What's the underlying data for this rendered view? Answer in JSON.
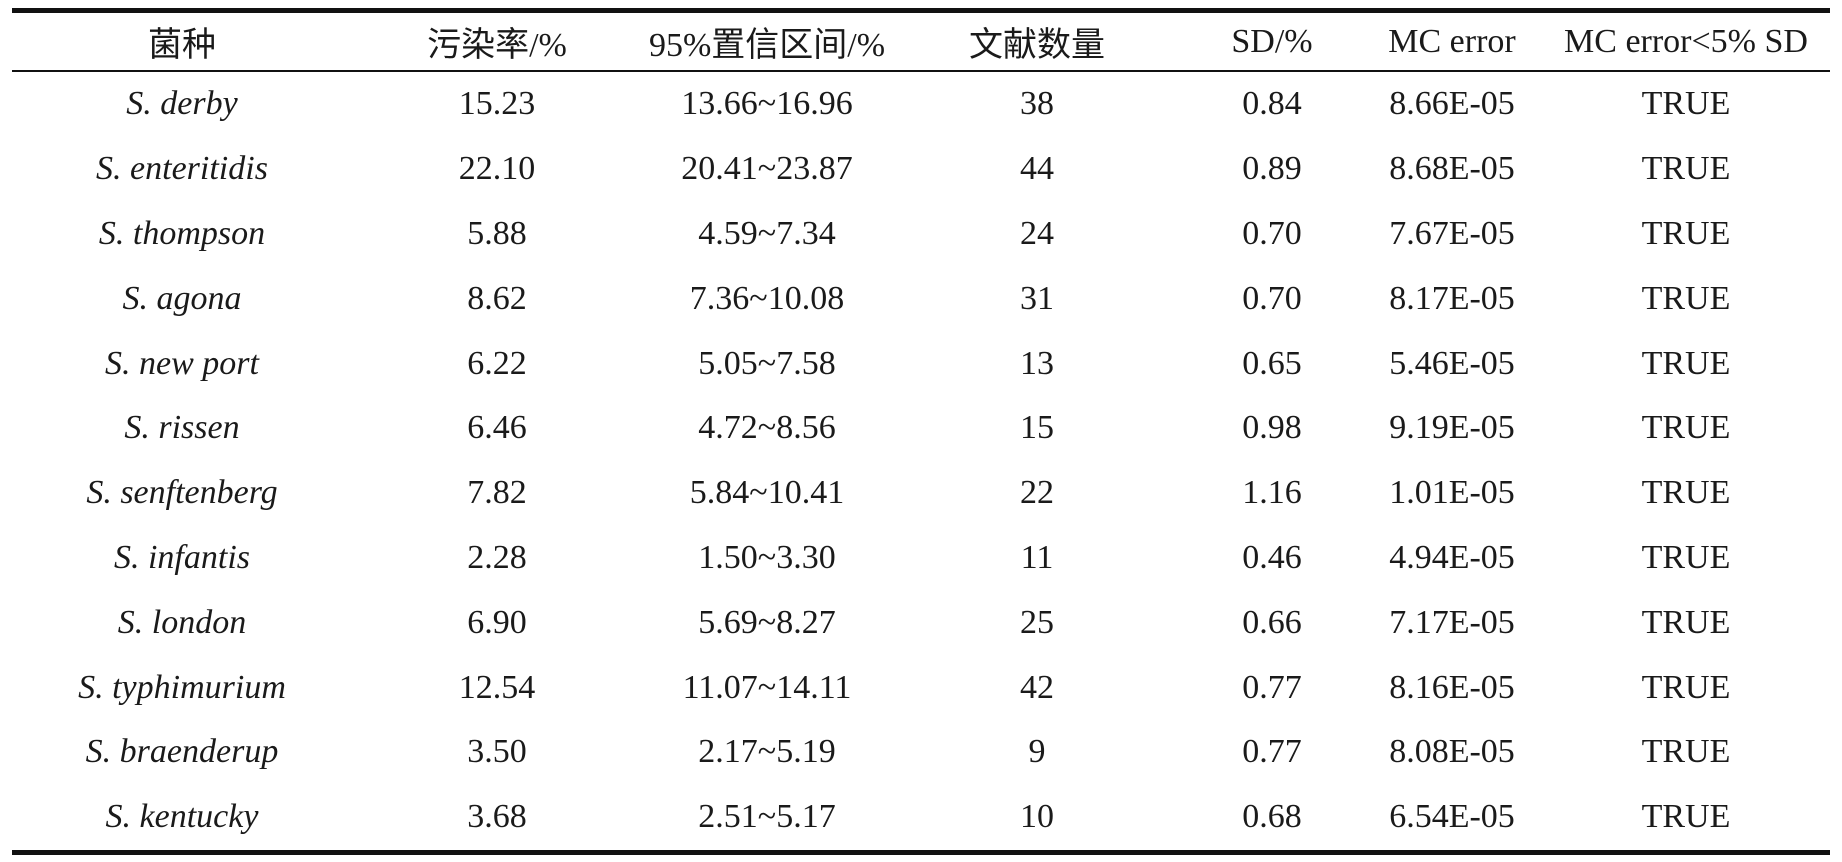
{
  "table": {
    "headers": [
      "菌种",
      "污染率/%",
      "95%置信区间/%",
      "文献数量",
      "SD/%",
      "MC error",
      "MC error<5% SD"
    ],
    "rows": [
      [
        "S. derby",
        "15.23",
        "13.66~16.96",
        "38",
        "0.84",
        "8.66E-05",
        "TRUE"
      ],
      [
        "S. enteritidis",
        "22.10",
        "20.41~23.87",
        "44",
        "0.89",
        "8.68E-05",
        "TRUE"
      ],
      [
        "S. thompson",
        "5.88",
        "4.59~7.34",
        "24",
        "0.70",
        "7.67E-05",
        "TRUE"
      ],
      [
        "S. agona",
        "8.62",
        "7.36~10.08",
        "31",
        "0.70",
        "8.17E-05",
        "TRUE"
      ],
      [
        "S. new port",
        "6.22",
        "5.05~7.58",
        "13",
        "0.65",
        "5.46E-05",
        "TRUE"
      ],
      [
        "S. rissen",
        "6.46",
        "4.72~8.56",
        "15",
        "0.98",
        "9.19E-05",
        "TRUE"
      ],
      [
        "S. senftenberg",
        "7.82",
        "5.84~10.41",
        "22",
        "1.16",
        "1.01E-05",
        "TRUE"
      ],
      [
        "S. infantis",
        "2.28",
        "1.50~3.30",
        "11",
        "0.46",
        "4.94E-05",
        "TRUE"
      ],
      [
        "S. london",
        "6.90",
        "5.69~8.27",
        "25",
        "0.66",
        "7.17E-05",
        "TRUE"
      ],
      [
        "S. typhimurium",
        "12.54",
        "11.07~14.11",
        "42",
        "0.77",
        "8.16E-05",
        "TRUE"
      ],
      [
        "S. braenderup",
        "3.50",
        "2.17~5.19",
        "9",
        "0.77",
        "8.08E-05",
        "TRUE"
      ],
      [
        "S. kentucky",
        "3.68",
        "2.51~5.17",
        "10",
        "0.68",
        "6.54E-05",
        "TRUE"
      ]
    ]
  }
}
